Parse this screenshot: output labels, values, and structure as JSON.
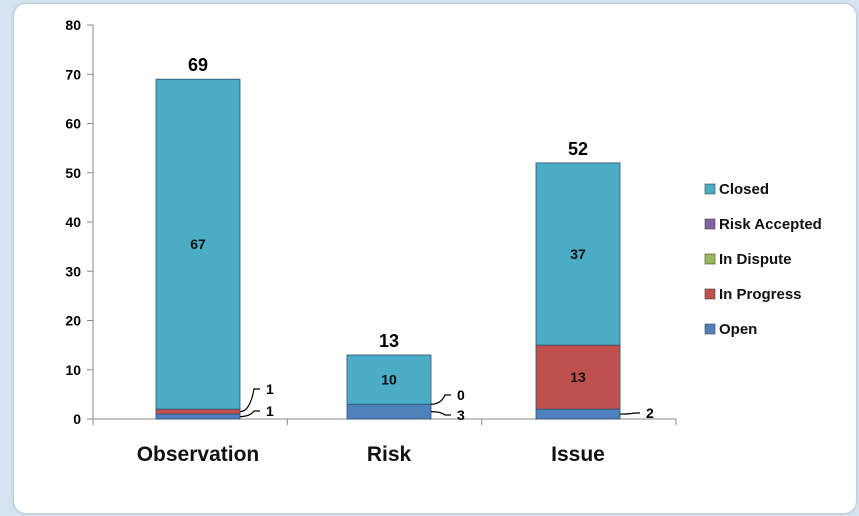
{
  "chart_data": {
    "type": "bar",
    "stacked": true,
    "title": "",
    "xlabel": "",
    "ylabel": "",
    "ylim": [
      0,
      80
    ],
    "yticks": [
      0,
      10,
      20,
      30,
      40,
      50,
      60,
      70,
      80
    ],
    "categories": [
      "Observation",
      "Risk",
      "Issue"
    ],
    "totals": [
      69,
      13,
      52
    ],
    "series": [
      {
        "name": "Open",
        "color": "#4f81bd",
        "values": [
          1,
          3,
          2
        ]
      },
      {
        "name": "In Progress",
        "color": "#c0504d",
        "values": [
          1,
          0,
          13
        ]
      },
      {
        "name": "In Dispute",
        "color": "#9bbb59",
        "values": [
          0,
          0,
          0
        ]
      },
      {
        "name": "Risk Accepted",
        "color": "#8064a2",
        "values": [
          0,
          0,
          0
        ]
      },
      {
        "name": "Closed",
        "color": "#4bacc6",
        "values": [
          67,
          10,
          37
        ]
      }
    ],
    "legend_order": [
      "Closed",
      "Risk Accepted",
      "In Dispute",
      "In Progress",
      "Open"
    ],
    "legend_position": "right",
    "grid": false,
    "data_labels": {
      "inside": [
        {
          "category": "Observation",
          "series": "Closed",
          "text": "67"
        },
        {
          "category": "Risk",
          "series": "Closed",
          "text": "10"
        },
        {
          "category": "Issue",
          "series": "Closed",
          "text": "37"
        },
        {
          "category": "Issue",
          "series": "In Progress",
          "text": "13"
        }
      ],
      "callouts": [
        {
          "category": "Observation",
          "series": "In Progress",
          "text": "1"
        },
        {
          "category": "Observation",
          "series": "Open",
          "text": "1"
        },
        {
          "category": "Risk",
          "series": "In Progress",
          "text": "0"
        },
        {
          "category": "Risk",
          "series": "Open",
          "text": "3"
        },
        {
          "category": "Issue",
          "series": "Open",
          "text": "2"
        }
      ]
    }
  }
}
